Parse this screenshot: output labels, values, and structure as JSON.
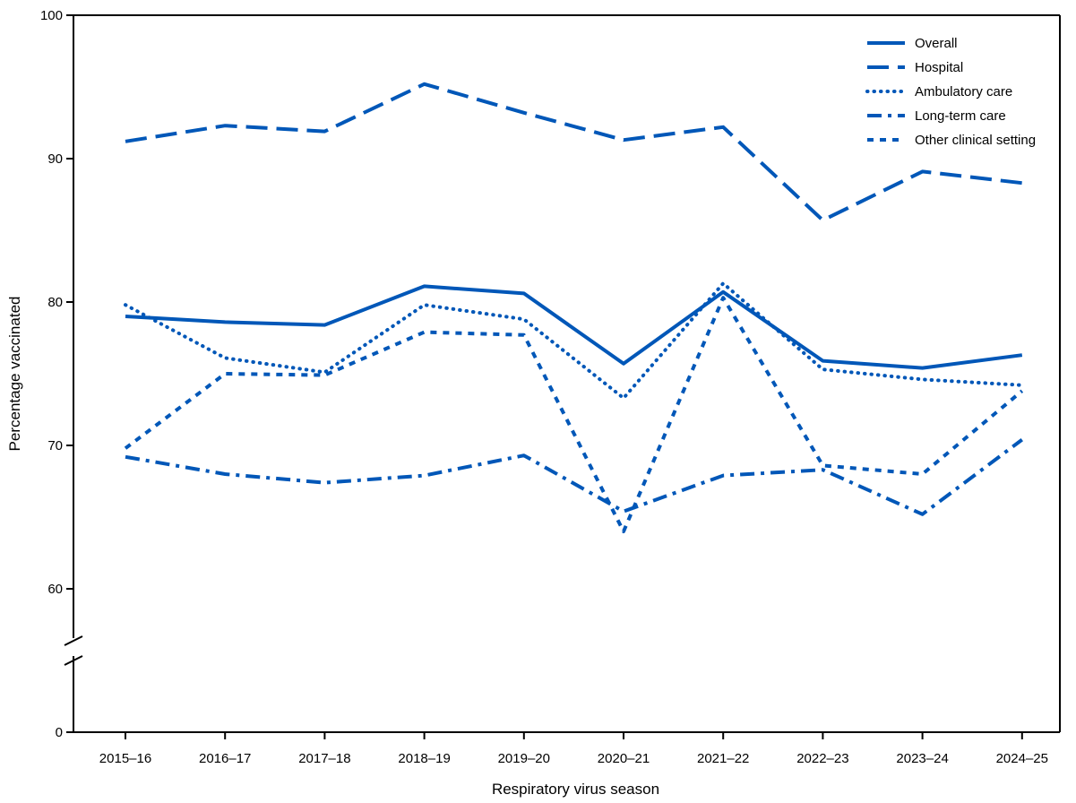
{
  "chart_data": {
    "type": "line",
    "title": "",
    "xlabel": "Respiratory virus season",
    "ylabel": "Percentage vaccinated",
    "categories": [
      "2015–16",
      "2016–17",
      "2017–18",
      "2018–19",
      "2019–20",
      "2020–21",
      "2021–22",
      "2022–23",
      "2023–24",
      "2024–25"
    ],
    "y_ticks": [
      0,
      60,
      70,
      80,
      90,
      100
    ],
    "y_axis_break": [
      0,
      55
    ],
    "ylim": [
      55,
      100
    ],
    "grid": false,
    "legend_position": "top-right",
    "color": "#0057b8",
    "series": [
      {
        "name": "Overall",
        "dash": "solid",
        "values": [
          79.0,
          78.6,
          78.4,
          81.1,
          80.6,
          75.7,
          80.7,
          75.9,
          75.4,
          76.3
        ]
      },
      {
        "name": "Hospital",
        "dash": "long-dash",
        "values": [
          91.2,
          92.3,
          91.9,
          95.2,
          93.2,
          91.3,
          92.2,
          85.7,
          89.1,
          88.3
        ]
      },
      {
        "name": "Ambulatory care",
        "dash": "dotted",
        "values": [
          79.8,
          76.1,
          75.1,
          79.8,
          78.8,
          73.3,
          81.3,
          75.3,
          74.6,
          74.2
        ]
      },
      {
        "name": "Long-term care",
        "dash": "dash-dot",
        "values": [
          69.2,
          68.0,
          67.4,
          67.9,
          69.3,
          65.4,
          67.9,
          68.3,
          65.2,
          70.4
        ]
      },
      {
        "name": "Other clinical setting",
        "dash": "short-dash",
        "values": [
          69.8,
          75.0,
          74.9,
          77.9,
          77.7,
          64.0,
          80.3,
          68.6,
          68.0,
          73.8
        ]
      }
    ]
  }
}
